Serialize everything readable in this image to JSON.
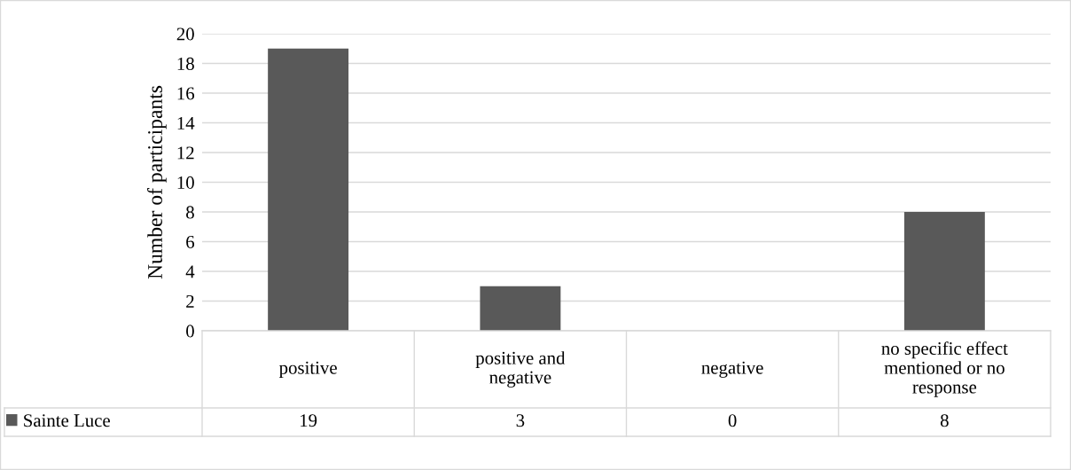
{
  "chart_data": {
    "type": "bar",
    "ylabel": "Number of participants",
    "categories": [
      "positive",
      "positive and\nnegative",
      "negative",
      "no specific effect\nmentioned or no\nresponse"
    ],
    "series": [
      {
        "name": "Sainte Luce",
        "color": "#595959",
        "values": [
          19,
          3,
          0,
          8
        ]
      }
    ],
    "ylim": [
      0,
      20
    ],
    "yticks": [
      0,
      2,
      4,
      6,
      8,
      10,
      12,
      14,
      16,
      18,
      20
    ],
    "grid": "y",
    "legend": "bottom left",
    "data_labels": true
  }
}
